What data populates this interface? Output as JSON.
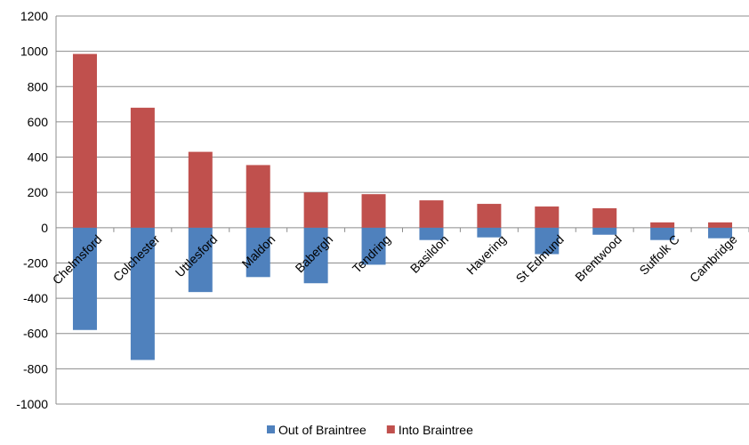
{
  "chart_data": {
    "type": "bar",
    "stacked": true,
    "title": "",
    "xlabel": "",
    "ylabel": "",
    "ylim": [
      -1000,
      1200
    ],
    "yticks": [
      1200,
      1000,
      800,
      600,
      400,
      200,
      0,
      -200,
      -400,
      -600,
      -800,
      -1000
    ],
    "grid": true,
    "legend_position": "bottom",
    "categories": [
      "Chelmsford",
      "Colchester",
      "Uttlesford",
      "Maldon",
      "Babergh",
      "Tendring",
      "Basildon",
      "Havering",
      "St Edmund",
      "Brentwood",
      "Suffolk C",
      "Cambridge"
    ],
    "series": [
      {
        "name": "Out of Braintree",
        "color": "#4F81BD",
        "values": [
          -580,
          -750,
          -365,
          -280,
          -315,
          -210,
          -70,
          -55,
          -150,
          -40,
          -70,
          -60
        ]
      },
      {
        "name": "Into Braintree",
        "color": "#C0504D",
        "values": [
          985,
          680,
          430,
          355,
          200,
          190,
          155,
          135,
          120,
          110,
          30,
          30
        ]
      }
    ]
  }
}
